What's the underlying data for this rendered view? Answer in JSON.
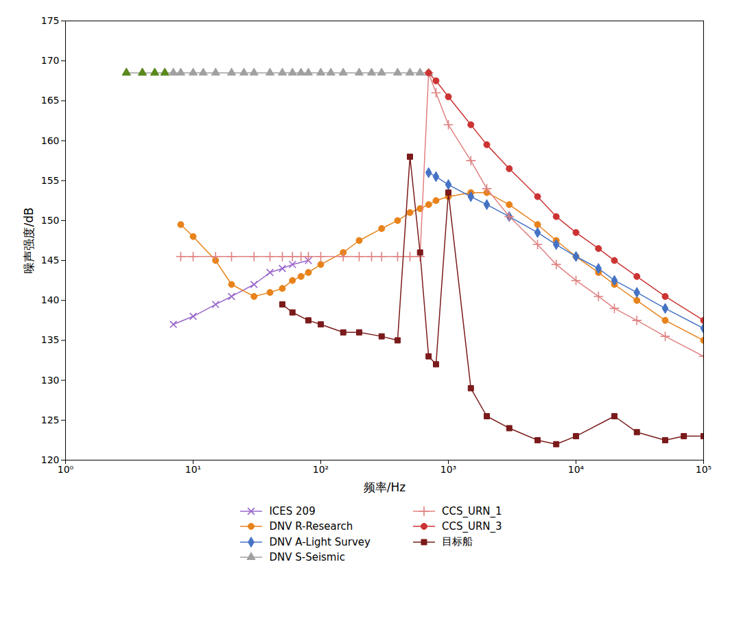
{
  "chart_data": {
    "type": "line",
    "log": "x",
    "xlabel": "频率/Hz",
    "ylabel": "噪声强度/dB",
    "xlim": [
      1,
      100000
    ],
    "xticks": [
      {
        "value": 1,
        "label": "10⁰"
      },
      {
        "value": 10,
        "label": "10¹"
      },
      {
        "value": 100,
        "label": "10²"
      },
      {
        "value": 1000,
        "label": "10³"
      },
      {
        "value": 10000,
        "label": "10⁴"
      },
      {
        "value": 100000,
        "label": "10⁵"
      }
    ],
    "ylim": [
      120,
      175
    ],
    "yticks": [
      120,
      125,
      130,
      135,
      140,
      145,
      150,
      155,
      160,
      165,
      170,
      175
    ],
    "grid": false,
    "legend": "bottom",
    "series": [
      {
        "name": "ICES 209",
        "color": "#9966cc",
        "marker": "times",
        "line_style": "solid",
        "x": [
          7,
          10,
          15,
          20,
          30,
          40,
          50,
          60,
          80
        ],
        "values": [
          137.0,
          138.0,
          139.5,
          140.5,
          142.0,
          143.5,
          144.0,
          144.5,
          145.0
        ]
      },
      {
        "name": "DNV R-Research",
        "color": "#e8821a",
        "marker": "circle",
        "line_style": "solid",
        "x": [
          8,
          10,
          15,
          20,
          30,
          40,
          50,
          60,
          70,
          80,
          100,
          150,
          200,
          300,
          400,
          500,
          600,
          700,
          800,
          1000,
          1500,
          2000,
          3000,
          5000,
          7000,
          10000,
          15000,
          20000,
          30000,
          50000,
          100000
        ],
        "values": [
          149.5,
          148.0,
          145.0,
          142.0,
          140.5,
          141.0,
          141.5,
          142.5,
          143.0,
          143.5,
          144.5,
          146.0,
          147.5,
          149.0,
          150.0,
          151.0,
          151.5,
          152.0,
          152.5,
          153.0,
          153.5,
          153.5,
          152.0,
          149.5,
          147.5,
          145.5,
          143.5,
          142.0,
          140.0,
          137.5,
          135.0
        ]
      },
      {
        "name": "DNV A-Light Survey",
        "color": "#4472c4",
        "marker": "diamond",
        "line_style": "solid",
        "x": [
          700,
          800,
          1000,
          1500,
          2000,
          3000,
          5000,
          7000,
          10000,
          15000,
          20000,
          30000,
          50000,
          100000
        ],
        "values": [
          156.0,
          155.5,
          154.5,
          153.0,
          152.0,
          150.5,
          148.5,
          147.0,
          145.5,
          144.0,
          142.5,
          141.0,
          139.0,
          136.5
        ]
      },
      {
        "name": "DNV S-Seismic",
        "color": "#a0a0a0",
        "marker": "triangle",
        "line_style": "solid",
        "x": [
          3,
          4,
          5,
          6,
          7,
          8,
          10,
          12,
          15,
          20,
          25,
          30,
          40,
          50,
          60,
          70,
          80,
          100,
          120,
          150,
          200,
          250,
          300,
          400,
          500,
          600,
          700
        ],
        "values": [
          168.5,
          168.5,
          168.5,
          168.5,
          168.5,
          168.5,
          168.5,
          168.5,
          168.5,
          168.5,
          168.5,
          168.5,
          168.5,
          168.5,
          168.5,
          168.5,
          168.5,
          168.5,
          168.5,
          168.5,
          168.5,
          168.5,
          168.5,
          168.5,
          168.5,
          168.5,
          168.5
        ]
      },
      {
        "name": "CCS_URN_1",
        "color": "#e08080",
        "marker": "plus",
        "line_style": "solid",
        "x": [
          8,
          10,
          15,
          20,
          30,
          40,
          50,
          60,
          70,
          80,
          100,
          150,
          200,
          250,
          300,
          400,
          500,
          600,
          700,
          800,
          1000,
          1500,
          2000,
          3000,
          5000,
          7000,
          10000,
          15000,
          20000,
          30000,
          50000,
          100000
        ],
        "values": [
          145.5,
          145.5,
          145.5,
          145.5,
          145.5,
          145.5,
          145.5,
          145.5,
          145.5,
          145.5,
          145.5,
          145.5,
          145.5,
          145.5,
          145.5,
          145.5,
          145.5,
          145.5,
          168.5,
          166.0,
          162.0,
          157.5,
          154.0,
          150.5,
          147.0,
          144.5,
          142.5,
          140.5,
          139.0,
          137.5,
          135.5,
          133.0
        ]
      },
      {
        "name": "CCS_URN_3",
        "color": "#cc3333",
        "marker": "circle",
        "line_style": "solid",
        "x": [
          700,
          800,
          1000,
          1500,
          2000,
          3000,
          5000,
          7000,
          10000,
          15000,
          20000,
          30000,
          50000,
          100000
        ],
        "values": [
          168.5,
          167.5,
          165.5,
          162.0,
          159.5,
          156.5,
          153.0,
          150.5,
          148.5,
          146.5,
          145.0,
          143.0,
          140.5,
          137.5
        ]
      },
      {
        "name": "目标船",
        "color": "#7a1a1a",
        "marker": "square",
        "line_style": "solid",
        "x": [
          50,
          60,
          80,
          100,
          150,
          200,
          300,
          400,
          500,
          600,
          700,
          800,
          1000,
          1500,
          2000,
          3000,
          5000,
          7000,
          10000,
          20000,
          30000,
          50000,
          70000,
          100000
        ],
        "values": [
          139.5,
          138.5,
          137.5,
          137.0,
          136.0,
          136.0,
          135.5,
          135.0,
          158.0,
          146.0,
          133.0,
          132.0,
          153.5,
          129.0,
          125.5,
          124.0,
          122.5,
          122.0,
          123.0,
          125.5,
          123.5,
          122.5,
          123.0,
          123.0
        ]
      },
      {
        "color": "#5a8a1a",
        "marker": "triangle",
        "line_style": "none",
        "x": [
          3,
          4,
          5,
          6
        ],
        "values": [
          168.5,
          168.5,
          168.5,
          168.5
        ]
      }
    ]
  }
}
